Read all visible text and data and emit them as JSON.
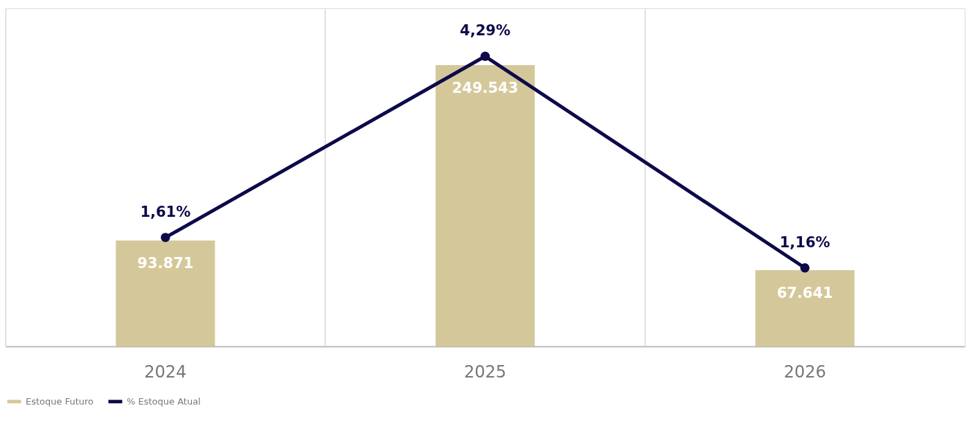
{
  "chart_data": {
    "type": "bar",
    "categories": [
      "2024",
      "2025",
      "2026"
    ],
    "series": [
      {
        "name": "Estoque Futuro",
        "color": "#d4c89a",
        "values": [
          93871,
          249543,
          67641
        ],
        "value_labels": [
          "93.871",
          "249.543",
          "67.641"
        ]
      },
      {
        "name": "% Estoque Atual",
        "type": "line",
        "axis": "y2",
        "color": "#0d0a4a",
        "values": [
          1.61,
          4.29,
          1.16
        ],
        "value_labels": [
          "1,61%",
          "4,29%",
          "1,16%"
        ],
        "marker": "circle"
      }
    ],
    "ylim": [
      0,
      300000
    ],
    "y2lim": [
      0,
      5
    ],
    "tick_labels": "x",
    "grid": true,
    "legend": "bottom"
  }
}
